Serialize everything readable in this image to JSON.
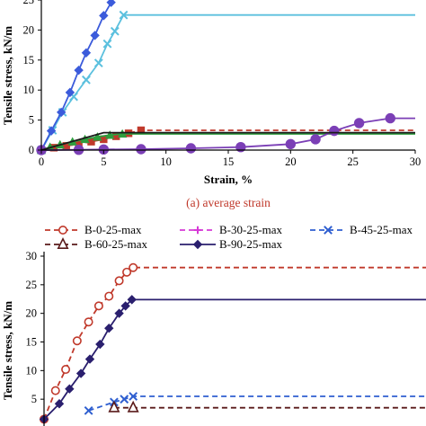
{
  "chart_data": [
    {
      "type": "line",
      "caption": "(a) average strain",
      "xlabel": "Strain, %",
      "ylabel": "Tensile stress, kN/m",
      "xlim": [
        0,
        30
      ],
      "ylim": [
        0,
        25
      ],
      "xticks": [
        0,
        5,
        10,
        15,
        20,
        25,
        30
      ],
      "yticks": [
        0,
        5,
        10,
        15,
        20,
        25
      ],
      "grid": false,
      "series": [
        {
          "key": "b0",
          "color": "#c0392b",
          "dash": "6,4",
          "marker": "square",
          "points": [
            [
              0,
              0
            ],
            [
              1,
              0.4
            ],
            [
              2,
              0.7
            ],
            [
              3,
              1.0
            ],
            [
              4,
              1.4
            ],
            [
              5,
              1.8
            ],
            [
              6,
              2.3
            ],
            [
              7,
              2.8
            ],
            [
              8,
              3.3
            ],
            [
              30,
              3.3
            ]
          ],
          "marked_count": 9
        },
        {
          "key": "b30",
          "color": "#2e9e3e",
          "dash": "",
          "marker": "triangle",
          "points": [
            [
              0,
              0
            ],
            [
              0.7,
              0.5
            ],
            [
              1.5,
              0.9
            ],
            [
              2.5,
              1.4
            ],
            [
              3.5,
              1.8
            ],
            [
              4.5,
              2.2
            ],
            [
              5.5,
              2.5
            ],
            [
              6.5,
              2.7
            ],
            [
              30,
              2.7
            ]
          ],
          "marked_count": 8
        },
        {
          "key": "b45",
          "color": "#5bc0de",
          "dash": "",
          "marker": "x",
          "points": [
            [
              0,
              0
            ],
            [
              0.9,
              3.3
            ],
            [
              1.7,
              6.3
            ],
            [
              2.6,
              8.9
            ],
            [
              3.6,
              11.7
            ],
            [
              4.6,
              14.5
            ],
            [
              5.3,
              17.7
            ],
            [
              5.9,
              19.8
            ],
            [
              6.6,
              22.5
            ],
            [
              30,
              22.5
            ]
          ],
          "marked_count": 9
        },
        {
          "key": "b90",
          "color": "#3b5bdb",
          "dash": "",
          "marker": "diamond",
          "points": [
            [
              0,
              0
            ],
            [
              0.8,
              3.2
            ],
            [
              1.6,
              6.3
            ],
            [
              2.3,
              9.6
            ],
            [
              3.0,
              13.3
            ],
            [
              3.6,
              16.2
            ],
            [
              4.3,
              19.1
            ],
            [
              5.0,
              22.4
            ],
            [
              5.6,
              24.6
            ],
            [
              6.2,
              26.5
            ]
          ],
          "marked_count": 10
        },
        {
          "key": "b60",
          "color": "#7b3fb6",
          "dash": "",
          "marker": "circle",
          "points": [
            [
              0,
              0
            ],
            [
              3,
              0.05
            ],
            [
              5,
              0.1
            ],
            [
              8,
              0.15
            ],
            [
              12,
              0.3
            ],
            [
              16,
              0.5
            ],
            [
              20,
              1.0
            ],
            [
              22,
              1.8
            ],
            [
              23.5,
              3.2
            ],
            [
              25.5,
              4.5
            ],
            [
              28,
              5.3
            ],
            [
              30,
              5.3
            ]
          ],
          "marked_count": 11
        },
        {
          "key": "bref",
          "color": "#1a1a1a",
          "dash": "",
          "marker": "none",
          "points": [
            [
              0,
              0
            ],
            [
              5,
              2.9
            ],
            [
              30,
              2.9
            ]
          ],
          "marked_count": 0
        }
      ]
    },
    {
      "type": "line",
      "ylabel": "Tensile stress, kN/m",
      "ylim": [
        0,
        30
      ],
      "yticks": [
        5,
        10,
        15,
        20,
        25,
        30
      ],
      "xlim": [
        0,
        30
      ],
      "grid": false,
      "legend": {
        "placement": "top",
        "entries": [
          {
            "label": "B-0-25-max",
            "color": "#c0392b",
            "dash": "6,4",
            "marker": "circle-open"
          },
          {
            "label": "B-30-25-max",
            "color": "#d63ad6",
            "dash": "6,4",
            "marker": "plus"
          },
          {
            "label": "B-45-25-max",
            "color": "#2f5fd0",
            "dash": "6,4",
            "marker": "x"
          },
          {
            "label": "B-60-25-max",
            "color": "#5a1a1a",
            "dash": "6,4",
            "marker": "triangle-open"
          },
          {
            "label": "B-90-25-max",
            "color": "#2a1f6e",
            "dash": "",
            "marker": "diamond"
          }
        ]
      },
      "series": [
        {
          "key": "b0",
          "color": "#c0392b",
          "dash": "6,4",
          "marker": "circle-open",
          "points": [
            [
              0,
              1.5
            ],
            [
              0.9,
              6.5
            ],
            [
              1.7,
              10.2
            ],
            [
              2.6,
              15.2
            ],
            [
              3.5,
              18.5
            ],
            [
              4.3,
              21.3
            ],
            [
              5.1,
              23.0
            ],
            [
              5.9,
              25.7
            ],
            [
              6.5,
              27.2
            ],
            [
              7.0,
              28.0
            ],
            [
              30,
              28.0
            ]
          ],
          "marked_count": 10
        },
        {
          "key": "b90",
          "color": "#2a1f6e",
          "dash": "",
          "marker": "diamond",
          "points": [
            [
              0,
              1.5
            ],
            [
              1.2,
              4.2
            ],
            [
              2.0,
              6.8
            ],
            [
              2.9,
              9.5
            ],
            [
              3.6,
              12.0
            ],
            [
              4.4,
              14.6
            ],
            [
              5.1,
              17.4
            ],
            [
              5.9,
              20.0
            ],
            [
              6.4,
              21.3
            ],
            [
              6.9,
              22.4
            ],
            [
              30,
              22.4
            ]
          ],
          "marked_count": 10
        },
        {
          "key": "b45",
          "color": "#2f5fd0",
          "dash": "6,4",
          "marker": "x",
          "points": [
            [
              3.5,
              3.0
            ],
            [
              5.5,
              4.5
            ],
            [
              6.3,
              5.0
            ],
            [
              7.0,
              5.5
            ],
            [
              30,
              5.5
            ]
          ],
          "marked_count": 4
        },
        {
          "key": "b60",
          "color": "#5a1a1a",
          "dash": "6,4",
          "marker": "triangle-open",
          "points": [
            [
              5.5,
              3.5
            ],
            [
              7.0,
              3.5
            ],
            [
              30,
              3.5
            ]
          ],
          "marked_count": 2
        }
      ]
    }
  ]
}
